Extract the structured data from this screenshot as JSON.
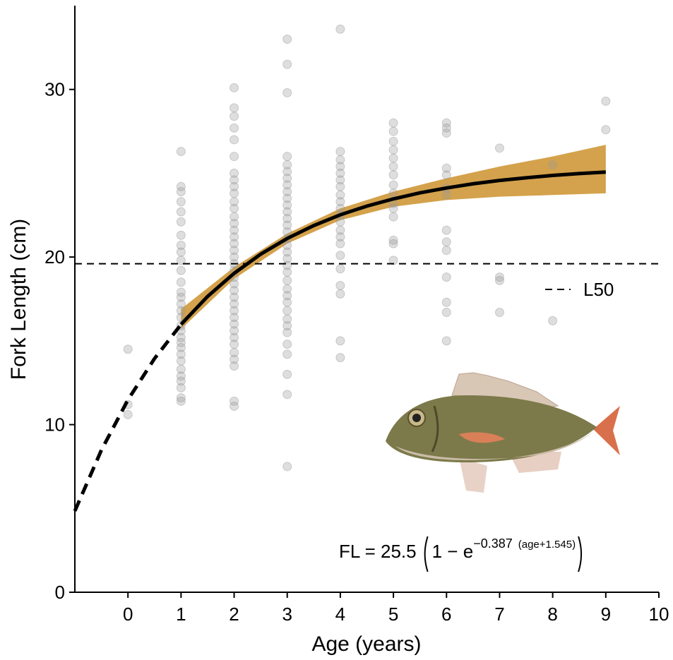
{
  "chart_data": {
    "type": "scatter",
    "x_label": "Age (years)",
    "y_label": "Fork Length (cm)",
    "xlim": [
      -1,
      10
    ],
    "xticks": [
      0,
      1,
      2,
      3,
      4,
      5,
      6,
      7,
      8,
      9,
      10
    ],
    "ylim": [
      0,
      35
    ],
    "yticks": [
      0,
      10,
      20,
      30
    ],
    "point_color": "#999999",
    "points": [
      {
        "x": 0,
        "values": [
          14.5,
          11.2,
          10.6
        ]
      },
      {
        "x": 1,
        "values": [
          26.3,
          24.2,
          23.9,
          23.3,
          22.7,
          22.1,
          21.3,
          20.7,
          20.3,
          19.8,
          19.2,
          18.5,
          17.9,
          17.6,
          17.2,
          16.8,
          16.4,
          15.9,
          15.6,
          15.2,
          14.9,
          14.6,
          14.2,
          13.8,
          13.3,
          12.9,
          12.6,
          12.2,
          11.6,
          11.4
        ]
      },
      {
        "x": 2,
        "values": [
          30.1,
          28.9,
          28.4,
          27.7,
          27.0,
          26.0,
          25.0,
          24.6,
          24.2,
          23.8,
          23.3,
          22.9,
          22.4,
          22.0,
          21.6,
          21.2,
          20.8,
          20.4,
          20.0,
          19.6,
          19.2,
          18.8,
          18.4,
          18.0,
          17.6,
          17.2,
          16.8,
          16.4,
          16.0,
          15.6,
          15.2,
          14.8,
          14.3,
          13.9,
          13.5,
          11.4,
          11.1
        ]
      },
      {
        "x": 3,
        "values": [
          33.0,
          31.5,
          29.8,
          26.0,
          25.5,
          25.1,
          24.7,
          24.3,
          23.9,
          23.5,
          23.1,
          22.7,
          22.3,
          21.9,
          21.5,
          21.1,
          20.7,
          20.3,
          19.9,
          19.5,
          19.1,
          18.6,
          18.1,
          17.7,
          17.3,
          16.8,
          16.3,
          15.9,
          15.5,
          14.8,
          14.2,
          13.0,
          11.8,
          7.5
        ]
      },
      {
        "x": 4,
        "values": [
          33.6,
          26.3,
          25.8,
          25.4,
          25.0,
          24.6,
          24.2,
          23.7,
          23.3,
          22.9,
          22.5,
          22.1,
          21.6,
          21.2,
          20.8,
          20.1,
          19.3,
          18.3,
          17.8,
          15.0,
          14.0
        ]
      },
      {
        "x": 5,
        "values": [
          28.0,
          27.5,
          26.9,
          26.4,
          25.9,
          25.4,
          24.9,
          24.3,
          23.8,
          23.2,
          22.9,
          22.4,
          21.0,
          20.8,
          19.8
        ]
      },
      {
        "x": 6,
        "values": [
          28.0,
          27.7,
          27.4,
          25.3,
          24.9,
          24.1,
          23.7,
          21.6,
          20.9,
          20.4,
          18.8,
          17.3,
          16.7,
          15.0
        ]
      },
      {
        "x": 7,
        "values": [
          26.5,
          18.8,
          18.6,
          16.7
        ]
      },
      {
        "x": 8,
        "values": [
          25.5,
          16.2
        ]
      },
      {
        "x": 9,
        "values": [
          29.3,
          27.6
        ]
      }
    ],
    "band": {
      "color": "#d4a24c",
      "x": [
        1,
        2,
        3,
        4,
        5,
        6,
        7,
        8,
        9
      ],
      "lower": [
        15.7,
        18.7,
        20.8,
        22.2,
        23.0,
        23.4,
        23.6,
        23.7,
        23.8
      ],
      "upper": [
        16.9,
        19.4,
        21.4,
        22.9,
        23.9,
        24.7,
        25.4,
        26.0,
        26.7
      ]
    },
    "fit_extrapolated": {
      "color": "#000000",
      "dashed": true,
      "x": [
        -1,
        -0.5,
        0,
        0.5,
        1
      ],
      "values": [
        4.85,
        8.48,
        11.48,
        13.94,
        15.98
      ]
    },
    "fit": {
      "color": "#000000",
      "x": [
        1,
        1.5,
        2,
        2.5,
        3,
        3.5,
        4,
        4.5,
        5,
        5.5,
        6,
        6.5,
        7,
        7.5,
        8,
        8.5,
        9
      ],
      "values": [
        15.98,
        17.65,
        19.03,
        20.17,
        21.11,
        21.88,
        22.52,
        23.04,
        23.47,
        23.83,
        24.12,
        24.37,
        24.57,
        24.73,
        24.87,
        24.98,
        25.07
      ]
    },
    "reference_line": {
      "name": "L50",
      "value": 19.6
    },
    "equation": {
      "lhs": "FL = 25.5",
      "base": "1 − e",
      "exponent": "−0.387",
      "exponent_arg": "(age+1.545)"
    }
  }
}
